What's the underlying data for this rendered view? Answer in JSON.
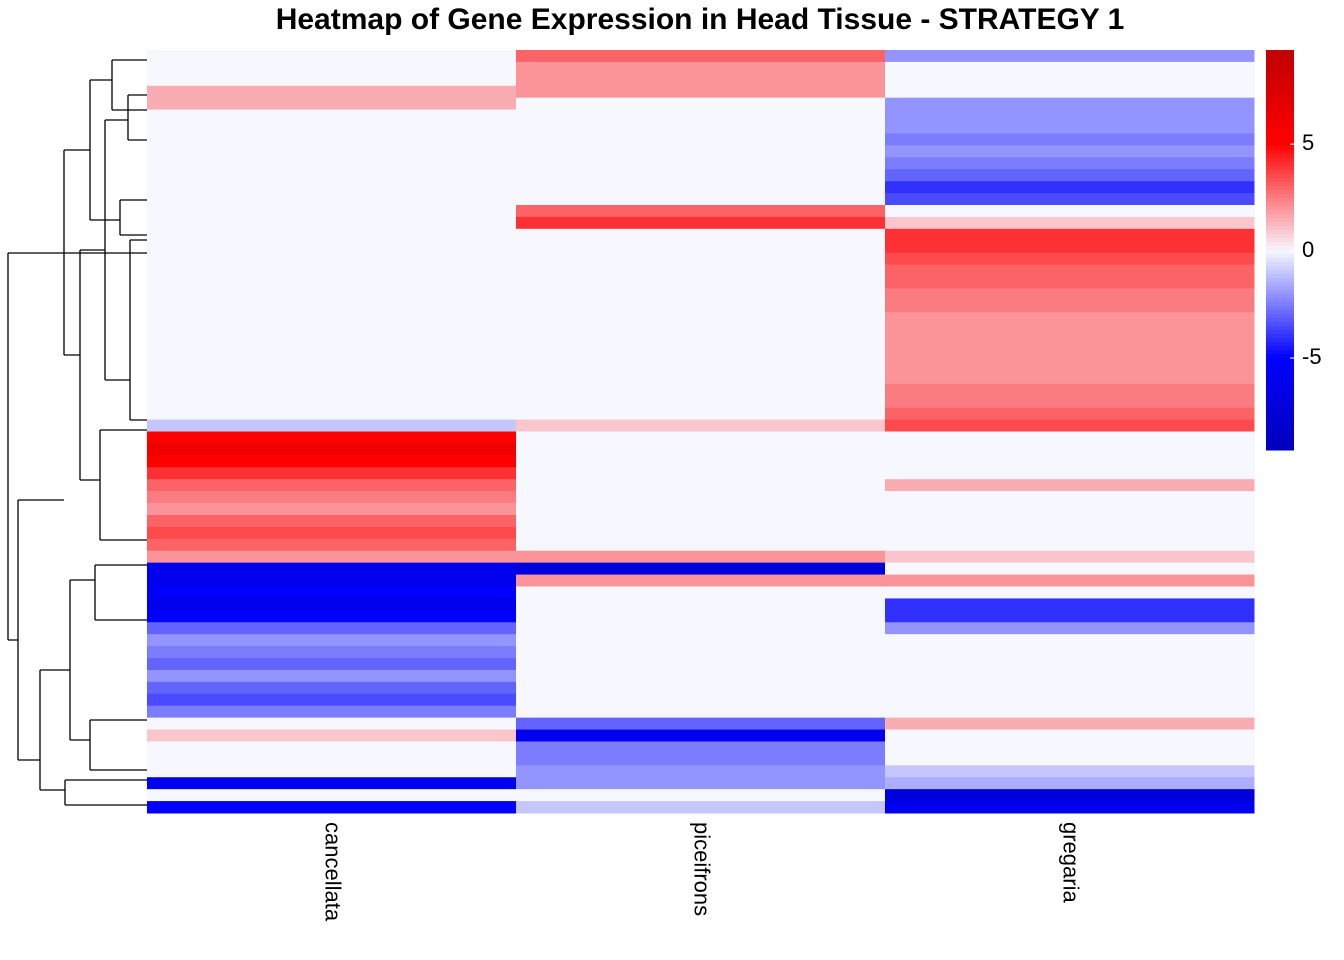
{
  "chart_data": {
    "type": "heatmap",
    "title": "Heatmap of Gene Expression in Head Tissue - STRATEGY 1",
    "categories": [
      "cancellata",
      "piceifrons",
      "gregaria"
    ],
    "values": [
      [
        0,
        3,
        -2
      ],
      [
        0,
        2,
        0
      ],
      [
        0,
        2,
        0
      ],
      [
        1.5,
        2,
        0
      ],
      [
        1.5,
        0,
        -2
      ],
      [
        0,
        0,
        -2
      ],
      [
        0,
        0,
        -2
      ],
      [
        0,
        0,
        -2.5
      ],
      [
        0,
        0,
        -2
      ],
      [
        0,
        0,
        -2.5
      ],
      [
        0,
        0,
        -3
      ],
      [
        0,
        0,
        -4
      ],
      [
        0,
        0,
        -3.5
      ],
      [
        0,
        3,
        0
      ],
      [
        0,
        4,
        1
      ],
      [
        0,
        0,
        4
      ],
      [
        0,
        0,
        4
      ],
      [
        0,
        0,
        3.5
      ],
      [
        0,
        0,
        3
      ],
      [
        0,
        0,
        3
      ],
      [
        0,
        0,
        2.5
      ],
      [
        0,
        0,
        2.5
      ],
      [
        0,
        0,
        2
      ],
      [
        0,
        0,
        2
      ],
      [
        0,
        0,
        2
      ],
      [
        0,
        0,
        2
      ],
      [
        0,
        0,
        2
      ],
      [
        0,
        0,
        2
      ],
      [
        0,
        0,
        2.5
      ],
      [
        0,
        0,
        2.5
      ],
      [
        0,
        0,
        3
      ],
      [
        -1,
        1,
        3.5
      ],
      [
        5,
        0,
        0
      ],
      [
        6,
        0,
        0
      ],
      [
        5,
        0,
        0
      ],
      [
        4,
        0,
        0
      ],
      [
        3,
        0,
        1.5
      ],
      [
        2.5,
        0,
        0
      ],
      [
        2,
        0,
        0
      ],
      [
        3,
        0,
        0
      ],
      [
        3.5,
        0,
        0
      ],
      [
        3,
        0,
        0
      ],
      [
        2,
        2,
        1
      ],
      [
        -6,
        -7,
        0
      ],
      [
        -6,
        2,
        2
      ],
      [
        -5,
        0,
        0
      ],
      [
        -6,
        0,
        -4
      ],
      [
        -5,
        0,
        -4
      ],
      [
        -3,
        0,
        -2
      ],
      [
        -2,
        0,
        0
      ],
      [
        -2.5,
        0,
        0
      ],
      [
        -3,
        0,
        0
      ],
      [
        -2,
        0,
        0
      ],
      [
        -3,
        0,
        0
      ],
      [
        -3.5,
        0,
        0
      ],
      [
        -2.5,
        0,
        0
      ],
      [
        0,
        -3,
        1.5
      ],
      [
        1,
        -6,
        0
      ],
      [
        0,
        -2.5,
        0
      ],
      [
        0,
        -2.5,
        0
      ],
      [
        0,
        -2,
        -1
      ],
      [
        -6,
        -2,
        -1.5
      ],
      [
        0,
        0,
        -7
      ],
      [
        -5,
        -1,
        -6
      ]
    ],
    "colorbar": {
      "lim": [
        -9.3,
        9.4
      ],
      "ticks": [
        -5,
        0,
        5
      ]
    },
    "color_stops": [
      [
        -9.3,
        "#0000bb"
      ],
      [
        -5,
        "#0000ff"
      ],
      [
        0,
        "#f7f7ff"
      ],
      [
        5,
        "#ff0000"
      ],
      [
        9.4,
        "#c00000"
      ]
    ]
  }
}
